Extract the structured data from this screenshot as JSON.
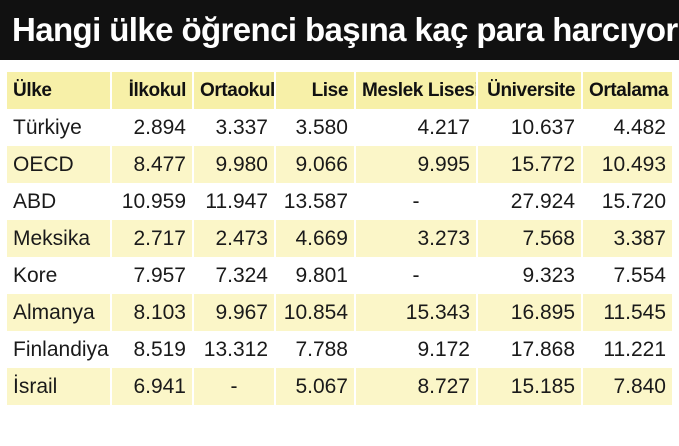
{
  "title": "Hangi ülke öğrenci başına kaç para harcıyor?",
  "headers": [
    "Ülke",
    "İlkokul",
    "Ortaokul",
    "Lise",
    "Meslek Lisesi",
    "Üniversite",
    "Ortalama"
  ],
  "rows": [
    [
      "Türkiye",
      "2.894",
      "3.337",
      "3.580",
      "4.217",
      "10.637",
      "4.482"
    ],
    [
      "OECD",
      "8.477",
      "9.980",
      "9.066",
      "9.995",
      "15.772",
      "10.493"
    ],
    [
      "ABD",
      "10.959",
      "11.947",
      "13.587",
      "-",
      "27.924",
      "15.720"
    ],
    [
      "Meksika",
      "2.717",
      "2.473",
      "4.669",
      "3.273",
      "7.568",
      "3.387"
    ],
    [
      "Kore",
      "7.957",
      "7.324",
      "9.801",
      "-",
      "9.323",
      "7.554"
    ],
    [
      "Almanya",
      "8.103",
      "9.967",
      "10.854",
      "15.343",
      "16.895",
      "11.545"
    ],
    [
      "Finlandiya",
      "8.519",
      "13.312",
      "7.788",
      "9.172",
      "17.868",
      "11.221"
    ],
    [
      "İsrail",
      "6.941",
      "-",
      "5.067",
      "8.727",
      "15.185",
      "7.840"
    ]
  ]
}
